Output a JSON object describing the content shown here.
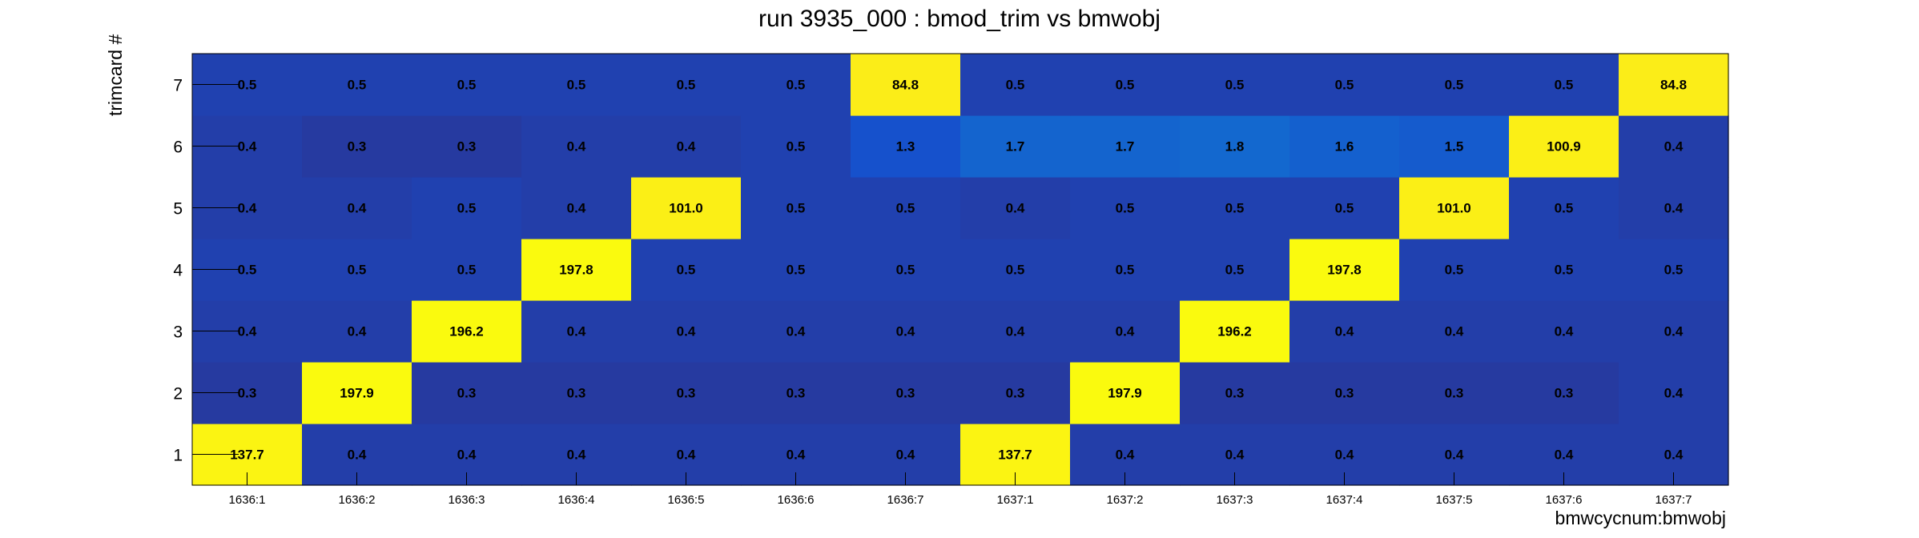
{
  "chart_data": {
    "type": "heatmap",
    "title": "run 3935_000 : bmod_trim vs bmwobj",
    "xlabel": "bmwcycnum:bmwobj",
    "ylabel": "trimcard #",
    "x_categories": [
      "1636:1",
      "1636:2",
      "1636:3",
      "1636:4",
      "1636:5",
      "1636:6",
      "1636:7",
      "1637:1",
      "1637:2",
      "1637:3",
      "1637:4",
      "1637:5",
      "1637:6",
      "1637:7"
    ],
    "y_categories": [
      "1",
      "2",
      "3",
      "4",
      "5",
      "6",
      "7"
    ],
    "values": [
      [
        137.7,
        0.4,
        0.4,
        0.4,
        0.4,
        0.4,
        0.4,
        137.7,
        0.4,
        0.4,
        0.4,
        0.4,
        0.4,
        0.4
      ],
      [
        0.3,
        197.9,
        0.3,
        0.3,
        0.3,
        0.3,
        0.3,
        0.3,
        197.9,
        0.3,
        0.3,
        0.3,
        0.3,
        0.4
      ],
      [
        0.4,
        0.4,
        196.2,
        0.4,
        0.4,
        0.4,
        0.4,
        0.4,
        0.4,
        196.2,
        0.4,
        0.4,
        0.4,
        0.4
      ],
      [
        0.5,
        0.5,
        0.5,
        197.8,
        0.5,
        0.5,
        0.5,
        0.5,
        0.5,
        0.5,
        197.8,
        0.5,
        0.5,
        0.5
      ],
      [
        0.4,
        0.4,
        0.5,
        0.4,
        101.0,
        0.5,
        0.5,
        0.4,
        0.5,
        0.5,
        0.5,
        101.0,
        0.5,
        0.4
      ],
      [
        0.4,
        0.3,
        0.3,
        0.4,
        0.4,
        0.5,
        1.3,
        1.7,
        1.7,
        1.8,
        1.6,
        1.5,
        100.9,
        0.4
      ],
      [
        0.5,
        0.5,
        0.5,
        0.5,
        0.5,
        0.5,
        84.8,
        0.5,
        0.5,
        0.5,
        0.5,
        0.5,
        0.5,
        84.8
      ]
    ],
    "grid": false,
    "legend": "none"
  }
}
